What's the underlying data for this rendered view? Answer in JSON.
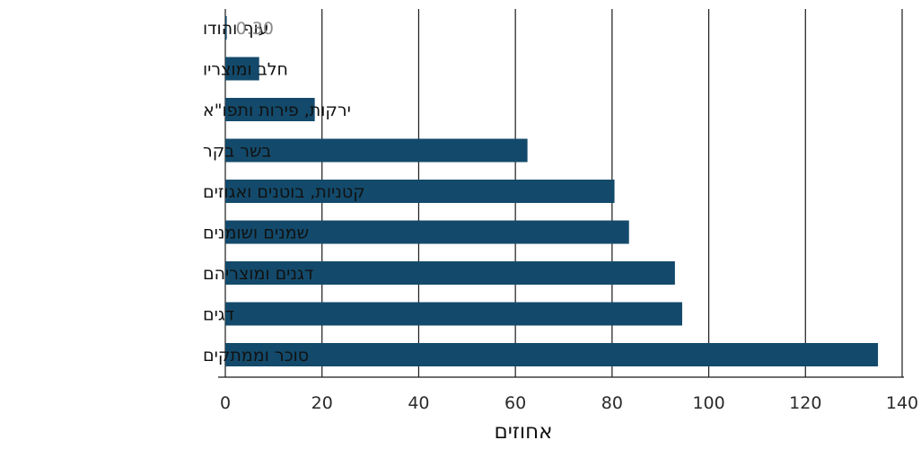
{
  "chart_data": {
    "type": "bar",
    "orientation": "horizontal",
    "categories": [
      "עוף והודו",
      "חלב ומוצריו",
      "ירקות, פירות ותפו\"א",
      "בשר בקר",
      "קטניות, בוטנים ואגוזים",
      "שמנים ושומנים",
      "דגנים ומוצריהם",
      "דגים",
      "סוכר וממתקים"
    ],
    "values": [
      0.3,
      7,
      18.5,
      62.5,
      80.5,
      83.5,
      93,
      94.5,
      135
    ],
    "data_labels": [
      "0.30",
      "",
      "",
      "",
      "",
      "",
      "",
      "",
      ""
    ],
    "xlabel": "אחוזים",
    "ylabel": "",
    "title": "",
    "xlim": [
      0,
      140
    ],
    "xticks": [
      0,
      20,
      40,
      60,
      80,
      100,
      120,
      140
    ],
    "xtick_labels": [
      "0",
      "20",
      "40",
      "60",
      "80",
      "100",
      "120",
      "140"
    ],
    "grid": "vertical",
    "bar_color": "#134a6b",
    "grid_color": "#1a1a1a"
  }
}
